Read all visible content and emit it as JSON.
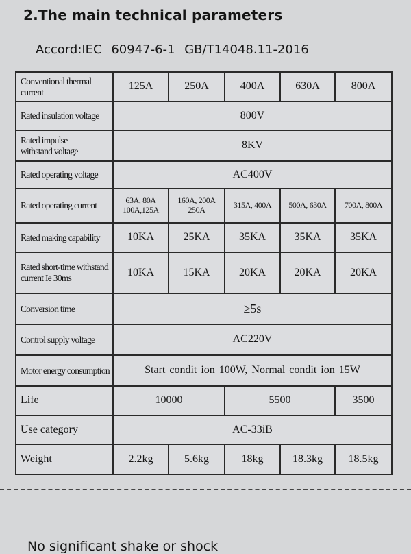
{
  "header": {
    "title": "2.The main technical parameters",
    "subtitle": "Accord:IEC 60947-6-1   GB/T14048.11-2016"
  },
  "table": {
    "rows": [
      {
        "label": "Conventional thermal current",
        "cells": [
          "125A",
          "250A",
          "400A",
          "630A",
          "800A"
        ]
      },
      {
        "label": "Rated insulation voltage",
        "cells": [
          "800V"
        ]
      },
      {
        "label": "Rated impulse\nwithstand voltage",
        "cells": [
          "8KV"
        ]
      },
      {
        "label": "Rated operating voltage",
        "cells": [
          "AC400V"
        ]
      },
      {
        "label": "Rated operating current",
        "cells": [
          "63A, 80A\n100A,125A",
          "160A, 200A\n250A",
          "315A, 400A",
          "500A, 630A",
          "700A, 800A"
        ]
      },
      {
        "label": "Rated making capability",
        "cells": [
          "10KA",
          "25KA",
          "35KA",
          "35KA",
          "35KA"
        ]
      },
      {
        "label": "Rated short-time withstand\ncurrent Ie 30ms",
        "cells": [
          "10KA",
          "15KA",
          "20KA",
          "20KA",
          "20KA"
        ]
      },
      {
        "label": "Conversion time",
        "cells": [
          "≥5s"
        ]
      },
      {
        "label": "Control supply voltage",
        "cells": [
          "AC220V"
        ]
      },
      {
        "label": "Motor energy consumption",
        "cells": [
          "Start condit ion 100W,   Normal condit ion 15W"
        ]
      },
      {
        "label": "Life",
        "cells": [
          "10000",
          "5500",
          "3500"
        ]
      },
      {
        "label": "Use category",
        "cells": [
          "AC-33iB"
        ]
      },
      {
        "label": "Weight",
        "cells": [
          "2.2kg",
          "5.6kg",
          "18kg",
          "18.3kg",
          "18.5kg"
        ]
      }
    ]
  },
  "footer": {
    "text": "No significant shake or shock"
  }
}
